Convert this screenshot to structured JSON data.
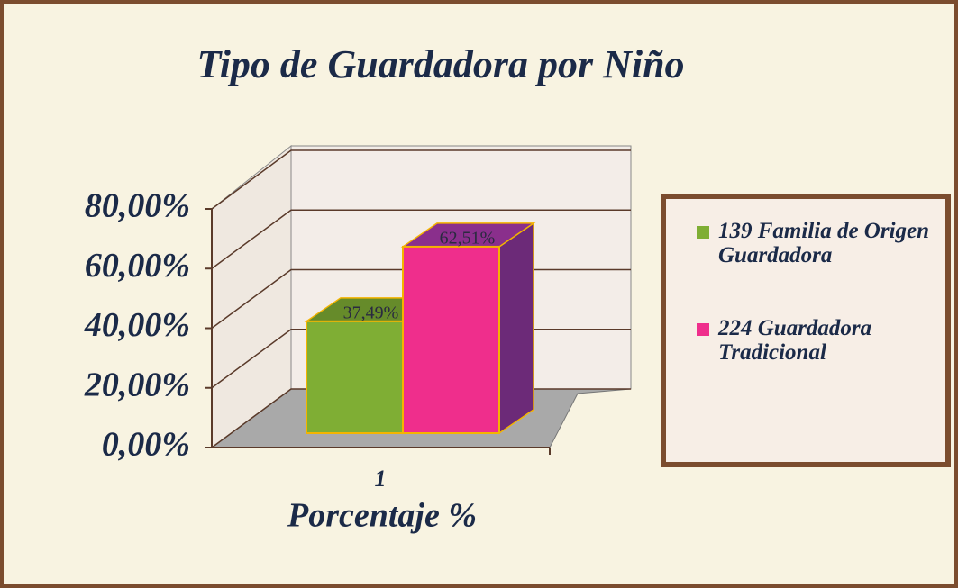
{
  "chart_data": {
    "type": "bar3d",
    "title": "Tipo de Guardadora por Niño",
    "categories": [
      "1"
    ],
    "xlabel": "Porcentaje %",
    "series": [
      {
        "name": "139 Familia de Origen Guardadora",
        "color": "#7fae34",
        "values": [
          37.49
        ],
        "value_labels": [
          "37,49%"
        ]
      },
      {
        "name": "224 Guardadora Tradicional",
        "color": "#ef2e8c",
        "values": [
          62.51
        ],
        "value_labels": [
          "62,51%"
        ]
      }
    ],
    "ylim": [
      0,
      80
    ],
    "yticks": [
      {
        "value": 0,
        "label": "0,00%"
      },
      {
        "value": 20,
        "label": "20,00%"
      },
      {
        "value": 40,
        "label": "40,00%"
      },
      {
        "value": 60,
        "label": "60,00%"
      },
      {
        "value": 80,
        "label": "80,00%"
      }
    ],
    "grid": true,
    "legend": "right"
  }
}
